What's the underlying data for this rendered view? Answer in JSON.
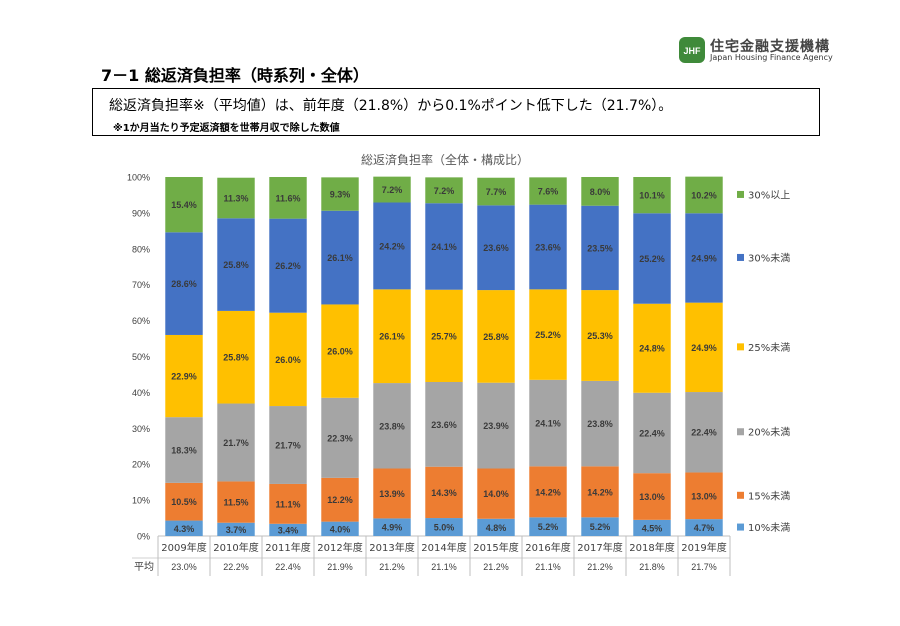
{
  "logo": {
    "mark_text": "JHF",
    "name_jp": "住宅金融支援機構",
    "name_en": "Japan Housing Finance Agency"
  },
  "page_title": "7－1 総返済負担率（時系列・全体）",
  "summary": {
    "main": "総返済負担率※（平均値）は、前年度（21.8%）から0.1%ポイント低下した（21.7%）。",
    "note": "※1か月当たり予定返済額を世帯月収で除した数値"
  },
  "colors": {
    "10%未満": "#5b9bd5",
    "15%未満": "#ed7d31",
    "20%未満": "#a5a5a5",
    "25%未満": "#ffc000",
    "30%未満": "#4472c4",
    "30%以上": "#70ad47"
  },
  "chart_data": {
    "type": "bar",
    "stacked": true,
    "title": "総返済負担率（全体・構成比）",
    "categories": [
      "2009年度",
      "2010年度",
      "2011年度",
      "2012年度",
      "2013年度",
      "2014年度",
      "2015年度",
      "2016年度",
      "2017年度",
      "2018年度",
      "2019年度"
    ],
    "ylim": [
      0,
      100
    ],
    "yticks": [
      "0%",
      "10%",
      "20%",
      "30%",
      "40%",
      "50%",
      "60%",
      "70%",
      "80%",
      "90%",
      "100%"
    ],
    "legend_position": "right",
    "series": [
      {
        "name": "10%未満",
        "values": [
          4.3,
          3.7,
          3.4,
          4.0,
          4.9,
          5.0,
          4.8,
          5.2,
          5.2,
          4.5,
          4.7
        ],
        "labels": [
          "4.3%",
          "3.7%",
          "3.4%",
          "4.0%",
          "4.9%",
          "5.0%",
          "4.8%",
          "5.2%",
          "5.2%",
          "4.5%",
          "4.7%"
        ]
      },
      {
        "name": "15%未満",
        "values": [
          10.5,
          11.5,
          11.1,
          12.2,
          13.9,
          14.3,
          14.0,
          14.2,
          14.2,
          13.0,
          13.0
        ],
        "labels": [
          "10.5%",
          "11.5%",
          "11.1%",
          "12.2%",
          "13.9%",
          "14.3%",
          "14.0%",
          "14.2%",
          "14.2%",
          "13.0%",
          "13.0%"
        ]
      },
      {
        "name": "20%未満",
        "values": [
          18.3,
          21.7,
          21.7,
          22.3,
          23.8,
          23.6,
          23.9,
          24.1,
          23.8,
          22.4,
          22.4
        ],
        "labels": [
          "18.3%",
          "21.7%",
          "21.7%",
          "22.3%",
          "23.8%",
          "23.6%",
          "23.9%",
          "24.1%",
          "23.8%",
          "22.4%",
          "22.4%"
        ]
      },
      {
        "name": "25%未満",
        "values": [
          22.9,
          25.8,
          26.0,
          26.0,
          26.1,
          25.7,
          25.8,
          25.2,
          25.3,
          24.8,
          24.9
        ],
        "labels": [
          "22.9%",
          "25.8%",
          "26.0%",
          "26.0%",
          "26.1%",
          "25.7%",
          "25.8%",
          "25.2%",
          "25.3%",
          "24.8%",
          "24.9%"
        ]
      },
      {
        "name": "30%未満",
        "values": [
          28.6,
          25.8,
          26.2,
          26.1,
          24.2,
          24.1,
          23.6,
          23.6,
          23.5,
          25.2,
          24.9
        ],
        "labels": [
          "28.6%",
          "25.8%",
          "26.2%",
          "26.1%",
          "24.2%",
          "24.1%",
          "23.6%",
          "23.6%",
          "23.5%",
          "25.2%",
          "24.9%"
        ]
      },
      {
        "name": "30%以上",
        "values": [
          15.4,
          11.3,
          11.6,
          9.3,
          7.2,
          7.2,
          7.7,
          7.6,
          8.0,
          10.1,
          10.2
        ],
        "labels": [
          "15.4%",
          "11.3%",
          "11.6%",
          "9.3%",
          "7.2%",
          "7.2%",
          "7.7%",
          "7.6%",
          "8.0%",
          "10.1%",
          "10.2%"
        ]
      }
    ],
    "average": {
      "label": "平均",
      "values": [
        23.0,
        22.2,
        22.4,
        21.9,
        21.2,
        21.1,
        21.2,
        21.1,
        21.2,
        21.8,
        21.7
      ],
      "labels": [
        "23.0%",
        "22.2%",
        "22.4%",
        "21.9%",
        "21.2%",
        "21.1%",
        "21.2%",
        "21.1%",
        "21.2%",
        "21.8%",
        "21.7%"
      ]
    }
  }
}
